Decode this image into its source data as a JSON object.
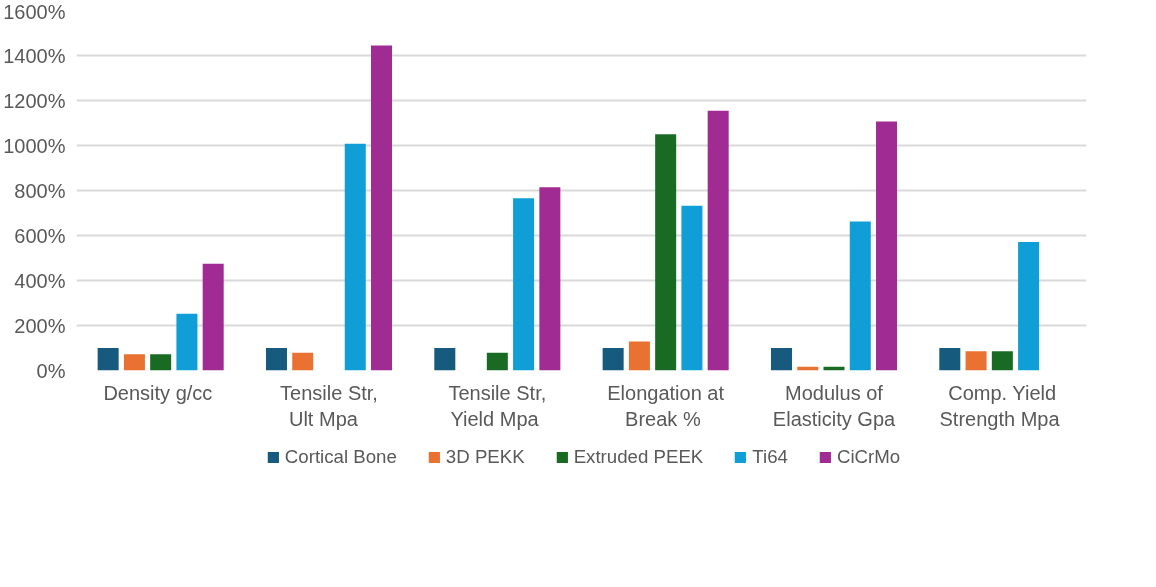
{
  "chart_data": {
    "type": "bar",
    "categories": [
      "Density  g/cc",
      "Tensile Str, Ult   Mpa",
      "Tensile Str, Yield  Mpa",
      "Elongation at Break  %",
      "Modulus of Elasticity Gpa",
      "Comp. Yield Strength  Mpa"
    ],
    "series": [
      {
        "name": "Cortical Bone",
        "color": "#165a7e",
        "values": [
          100,
          100,
          100,
          100,
          100,
          100
        ]
      },
      {
        "name": "3D PEKK",
        "color": "#e97132",
        "values": [
          72,
          79,
          null,
          129,
          17,
          86
        ]
      },
      {
        "name": "Extruded PEEK",
        "color": "#196b24",
        "values": [
          72,
          null,
          79,
          1050,
          17,
          86
        ]
      },
      {
        "name": "Ti64",
        "color": "#0f9ed5",
        "values": [
          252,
          1008,
          766,
          732,
          662,
          571
        ]
      },
      {
        "name": "CiCrMo",
        "color": "#a02b93",
        "values": [
          475,
          1444,
          814,
          1155,
          1107,
          null
        ]
      }
    ],
    "ylim": [
      0,
      1600
    ],
    "yticks": [
      {
        "value": 0,
        "label": "0%"
      },
      {
        "value": 200,
        "label": "200%"
      },
      {
        "value": 400,
        "label": "400%"
      },
      {
        "value": 600,
        "label": "600%"
      },
      {
        "value": 800,
        "label": "800%"
      },
      {
        "value": 1000,
        "label": "1000%"
      },
      {
        "value": 1200,
        "label": "1200%"
      },
      {
        "value": 1400,
        "label": "1400%"
      },
      {
        "value": 1600,
        "label": "1600%"
      }
    ],
    "grid": "y",
    "legend": "bottom"
  }
}
